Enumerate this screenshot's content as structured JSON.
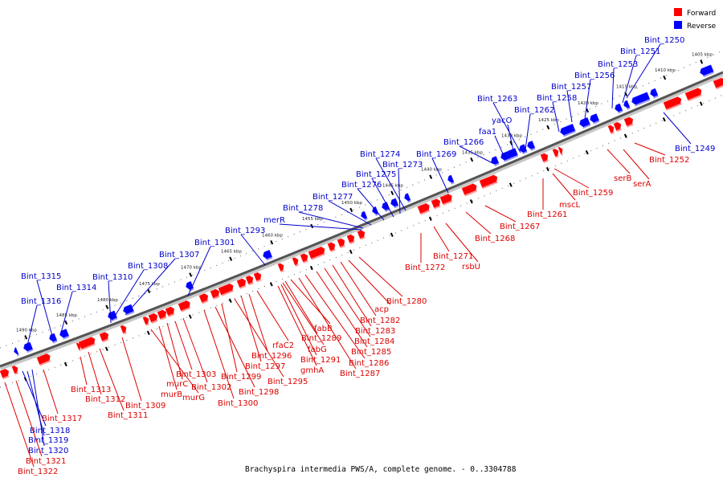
{
  "legend": {
    "forward_label": "Forward",
    "reverse_label": "Reverse",
    "forward_color": "#ff0000",
    "reverse_color": "#0000ff"
  },
  "caption": "Brachyspira intermedia PWS/A, complete genome. - 0..3304788",
  "scale_labels": [
    "1405 kbp",
    "1410 kbp",
    "1415 kbp",
    "1420 kbp",
    "1425 kbp",
    "1430 kbp",
    "1435 kbp",
    "1440 kbp",
    "1445 kbp",
    "1450 kbp",
    "1455 kbp",
    "1460 kbp",
    "1465 kbp",
    "1470 kbp",
    "1475 kbp",
    "1480 kbp",
    "1485 kbp",
    "1490 kbp"
  ],
  "reverse_genes": [
    "Bint_1250",
    "Bint_1251",
    "Bint_1253",
    "Bint_1256",
    "Bint_1257",
    "Bint_1258",
    "Bint_1263",
    "Bint_1262",
    "yacO",
    "faa1",
    "Bint_1266",
    "Bint_1269",
    "Bint_1274",
    "Bint_1273",
    "Bint_1275",
    "Bint_1276",
    "Bint_1277",
    "Bint_1278",
    "merR",
    "Bint_1293",
    "Bint_1301",
    "Bint_1307",
    "Bint_1308",
    "Bint_1310",
    "Bint_1315",
    "Bint_1314",
    "Bint_1316",
    "Bint_1249",
    "Bint_1318",
    "Bint_1319",
    "Bint_1320"
  ],
  "forward_genes": [
    "Bint_1252",
    "serA",
    "serB",
    "Bint_1259",
    "mscL",
    "Bint_1261",
    "Bint_1267",
    "Bint_1268",
    "rsbU",
    "Bint_1271",
    "Bint_1272",
    "Bint_1280",
    "acp",
    "Bint_1282",
    "Bint_1283",
    "Bint_1284",
    "Bint_1285",
    "Bint_1286",
    "Bint_1287",
    "fabB",
    "Bint_1289",
    "fabG",
    "Bint_1291",
    "gmhA",
    "rfaC2",
    "Bint_1296",
    "Bint_1297",
    "Bint_1295",
    "Bint_1299",
    "Bint_1298",
    "Bint_1300",
    "Bint_1302",
    "Bint_1303",
    "murC",
    "murB",
    "murG",
    "Bint_1309",
    "Bint_1311",
    "Bint_1312",
    "Bint_1313",
    "Bint_1317",
    "Bint_1321",
    "Bint_1322"
  ]
}
